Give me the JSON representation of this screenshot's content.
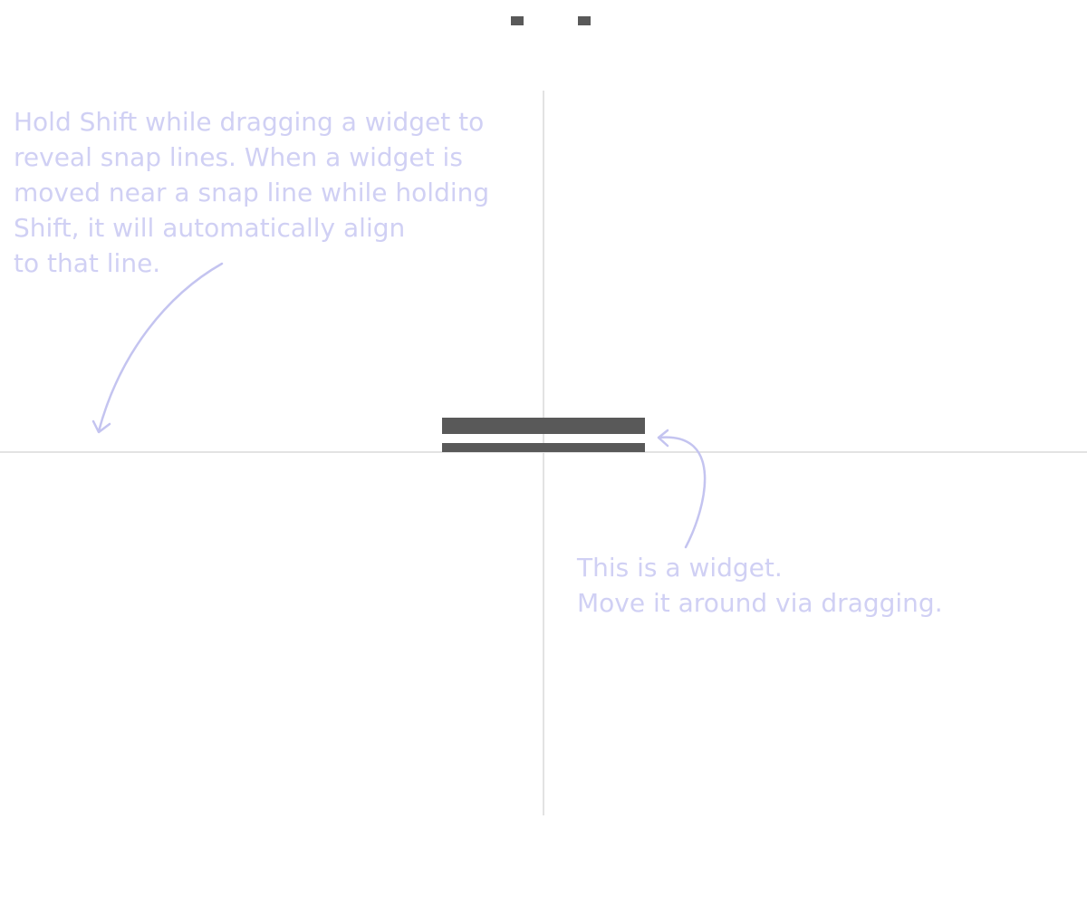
{
  "colors": {
    "background": "#ffffff",
    "snap_line": "#e3e3e3",
    "hint_text": "#d0d0f4",
    "arrow": "#c4c4f0",
    "widget": "#595959"
  },
  "instructions": {
    "snap_hint_lines": [
      "Hold Shift while dragging a widget to",
      "reveal snap lines. When a widget is",
      "moved near a snap line while holding",
      "Shift, it will automatically align",
      "to that line."
    ],
    "widget_hint_lines": [
      "This is a widget.",
      "Move it around via dragging."
    ]
  },
  "widget": {
    "icon": "draggable-widget-shape"
  }
}
